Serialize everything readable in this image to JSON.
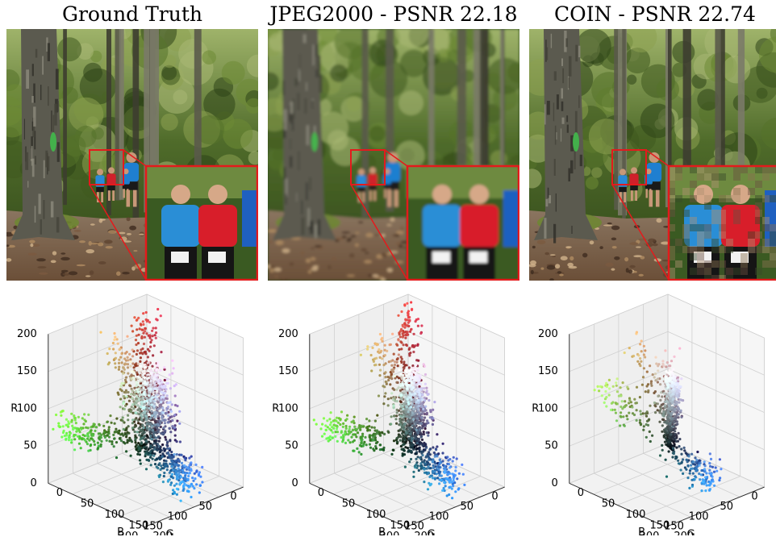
{
  "panels": [
    {
      "id": "gt",
      "title": "Ground Truth",
      "style": "sharp"
    },
    {
      "id": "jpeg",
      "title": "JPEG2000 - PSNR 22.18",
      "style": "blurry"
    },
    {
      "id": "coin",
      "title": "COIN - PSNR 22.74",
      "style": "blocky"
    }
  ],
  "plots": [
    {
      "id": "gt",
      "spread": "wide"
    },
    {
      "id": "jpeg",
      "spread": "medium"
    },
    {
      "id": "coin",
      "spread": "narrow"
    }
  ],
  "axes": {
    "r_label": "R",
    "g_label": "G",
    "b_label": "B",
    "r_ticks": [
      "0",
      "50",
      "100",
      "150",
      "200"
    ],
    "g_ticks": [
      "0",
      "50",
      "100",
      "150",
      "200"
    ],
    "b_ticks": [
      "0",
      "50",
      "100",
      "150",
      "200"
    ]
  },
  "colors": {
    "inset_border": "#e41a1c",
    "pane_left": "#efefef",
    "pane_right": "#f6f6f6",
    "pane_floor": "#f2f2f2",
    "grid": "#d0d0d0"
  }
}
